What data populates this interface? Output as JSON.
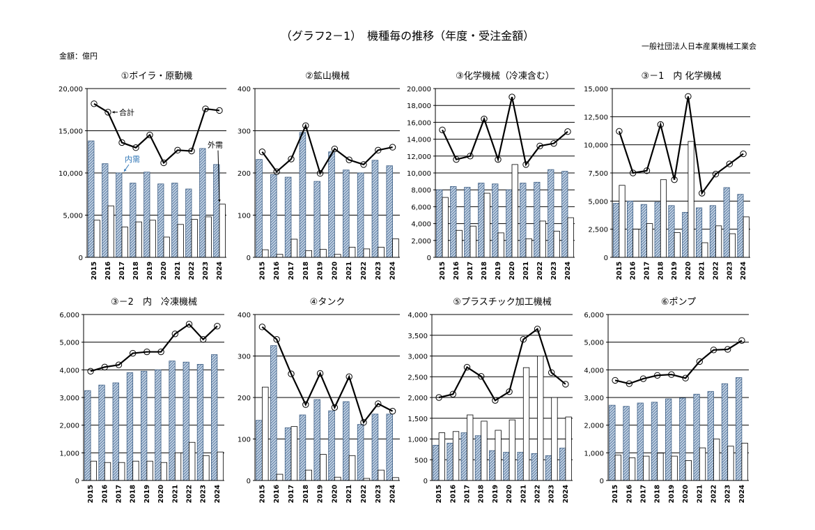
{
  "header": {
    "title": "（グラフ2－1）　機種毎の推移（年度・受注金額）",
    "organization": "一般社団法人日本産業機械工業会",
    "unit": "金額：億円"
  },
  "colors": {
    "domestic_fill": "#c5d5e6",
    "domestic_stroke": "#3f5f84",
    "hatch": "#5b7aa0",
    "overseas_fill": "#ffffff",
    "total_line": "#000000"
  },
  "chart_data": [
    {
      "type": "bar+line",
      "title": "①ボイラ・原動機",
      "categories": [
        "2015",
        "2016",
        "2017",
        "2018",
        "2019",
        "2020",
        "2021",
        "2022",
        "2023",
        "2024"
      ],
      "ylim": [
        0,
        20000
      ],
      "yticks": [
        "0",
        "5,000",
        "10,000",
        "15,000",
        "20,000"
      ],
      "series": [
        {
          "name": "内需",
          "values": [
            13800,
            11100,
            10000,
            8800,
            10100,
            8700,
            8800,
            8100,
            12900,
            11000
          ]
        },
        {
          "name": "外需",
          "values": [
            4400,
            6100,
            3600,
            4200,
            4400,
            2400,
            3900,
            4500,
            4800,
            6300
          ]
        },
        {
          "name": "合計",
          "values": [
            18200,
            17200,
            13600,
            13000,
            14500,
            11200,
            12700,
            12600,
            17600,
            17400
          ]
        }
      ],
      "annotations": [
        {
          "text": "合計",
          "series": 2,
          "index": 1
        },
        {
          "text": "内需",
          "series": 0,
          "index": 2
        },
        {
          "text": "外需",
          "series": 1,
          "index": 9
        }
      ]
    },
    {
      "type": "bar+line",
      "title": "②鉱山機械",
      "categories": [
        "2015",
        "2016",
        "2017",
        "2018",
        "2019",
        "2020",
        "2021",
        "2022",
        "2023",
        "2024"
      ],
      "ylim": [
        0,
        400
      ],
      "yticks": [
        "0",
        "100",
        "200",
        "300",
        "400"
      ],
      "series": [
        {
          "name": "内需",
          "values": [
            232,
            196,
            190,
            296,
            180,
            250,
            207,
            200,
            230,
            217
          ]
        },
        {
          "name": "外需",
          "values": [
            18,
            7,
            43,
            16,
            19,
            7,
            24,
            20,
            24,
            44
          ]
        },
        {
          "name": "合計",
          "values": [
            250,
            203,
            233,
            312,
            199,
            257,
            231,
            220,
            254,
            261
          ]
        }
      ]
    },
    {
      "type": "bar+line",
      "title": "③化学機械（冷凍含む）",
      "categories": [
        "2015",
        "2016",
        "2017",
        "2018",
        "2019",
        "2020",
        "2021",
        "2022",
        "2023",
        "2024"
      ],
      "ylim": [
        0,
        20000
      ],
      "yticks": [
        "0",
        "2,000",
        "4,000",
        "6,000",
        "8,000",
        "10,000",
        "12,000",
        "14,000",
        "16,000",
        "18,000",
        "20,000"
      ],
      "series": [
        {
          "name": "内需",
          "values": [
            8000,
            8400,
            8300,
            8800,
            8700,
            8000,
            8800,
            8900,
            10400,
            10200
          ]
        },
        {
          "name": "外需",
          "values": [
            7100,
            3200,
            3700,
            7600,
            2900,
            11000,
            2200,
            4300,
            3100,
            4700
          ]
        },
        {
          "name": "合計",
          "values": [
            15100,
            11600,
            12000,
            16400,
            11600,
            19000,
            11000,
            13200,
            13500,
            14900
          ]
        }
      ]
    },
    {
      "type": "bar+line",
      "title": "③－1　内 化学機械",
      "categories": [
        "2015",
        "2016",
        "2017",
        "2018",
        "2019",
        "2020",
        "2021",
        "2022",
        "2023",
        "2024"
      ],
      "ylim": [
        0,
        15000
      ],
      "yticks": [
        "0",
        "2,500",
        "5,000",
        "7,500",
        "10,000",
        "12,500",
        "15,000"
      ],
      "series": [
        {
          "name": "内需",
          "values": [
            4800,
            5000,
            4700,
            4900,
            4600,
            4000,
            4400,
            4600,
            6200,
            5600
          ]
        },
        {
          "name": "外需",
          "values": [
            6400,
            2500,
            3000,
            6900,
            2200,
            10300,
            1300,
            2800,
            2100,
            3600
          ]
        },
        {
          "name": "合計",
          "values": [
            11200,
            7500,
            7700,
            11800,
            6900,
            14300,
            5700,
            7400,
            8300,
            9200
          ]
        }
      ]
    },
    {
      "type": "bar+line",
      "title": "③－2　内　冷凍機械",
      "categories": [
        "2015",
        "2016",
        "2017",
        "2018",
        "2019",
        "2020",
        "2021",
        "2022",
        "2023",
        "2024"
      ],
      "ylim": [
        0,
        6000
      ],
      "yticks": [
        "0",
        "1,000",
        "2,000",
        "3,000",
        "4,000",
        "5,000",
        "6,000"
      ],
      "series": [
        {
          "name": "内需",
          "values": [
            3250,
            3450,
            3530,
            3900,
            3950,
            4000,
            4320,
            4280,
            4200,
            4550
          ]
        },
        {
          "name": "外需",
          "values": [
            700,
            650,
            650,
            700,
            700,
            650,
            1000,
            1380,
            900,
            1030
          ]
        },
        {
          "name": "合計",
          "values": [
            3950,
            4100,
            4180,
            4600,
            4650,
            4650,
            5300,
            5650,
            5100,
            5580
          ]
        }
      ]
    },
    {
      "type": "bar+line",
      "title": "④タンク",
      "categories": [
        "2015",
        "2016",
        "2017",
        "2018",
        "2019",
        "2020",
        "2021",
        "2022",
        "2023",
        "2024"
      ],
      "ylim": [
        0,
        400
      ],
      "yticks": [
        "0",
        "100",
        "200",
        "300",
        "400"
      ],
      "series": [
        {
          "name": "内需",
          "values": [
            145,
            325,
            127,
            158,
            195,
            168,
            190,
            135,
            160,
            160
          ]
        },
        {
          "name": "外需",
          "values": [
            225,
            15,
            130,
            25,
            63,
            8,
            60,
            5,
            25,
            7
          ]
        },
        {
          "name": "合計",
          "values": [
            370,
            340,
            257,
            183,
            258,
            176,
            250,
            140,
            185,
            167
          ]
        }
      ]
    },
    {
      "type": "bar+line",
      "title": "⑤プラスチック加工機械",
      "categories": [
        "2015",
        "2016",
        "2017",
        "2018",
        "2019",
        "2020",
        "2021",
        "2022",
        "2023",
        "2024"
      ],
      "ylim": [
        0,
        4000
      ],
      "yticks": [
        "0",
        "500",
        "1,000",
        "1,500",
        "2,000",
        "2,500",
        "3,000",
        "3,500",
        "4,000"
      ],
      "series": [
        {
          "name": "内需",
          "values": [
            850,
            900,
            1150,
            1080,
            720,
            680,
            680,
            650,
            600,
            780
          ]
        },
        {
          "name": "外需",
          "values": [
            1150,
            1180,
            1580,
            1430,
            1210,
            1460,
            2720,
            3000,
            2000,
            1530
          ]
        },
        {
          "name": "合計",
          "values": [
            2000,
            2080,
            2730,
            2510,
            1930,
            2140,
            3400,
            3650,
            2600,
            2320
          ]
        }
      ]
    },
    {
      "type": "bar+line",
      "title": "⑥ポンプ",
      "categories": [
        "2015",
        "2016",
        "2017",
        "2018",
        "2019",
        "2020",
        "2021",
        "2022",
        "2023",
        "2024"
      ],
      "ylim": [
        0,
        6000
      ],
      "yticks": [
        "0",
        "1,000",
        "2,000",
        "3,000",
        "4,000",
        "5,000",
        "6,000"
      ],
      "series": [
        {
          "name": "内需",
          "values": [
            2720,
            2680,
            2800,
            2830,
            2950,
            2980,
            3120,
            3220,
            3500,
            3720
          ]
        },
        {
          "name": "外需",
          "values": [
            920,
            820,
            880,
            990,
            880,
            720,
            1180,
            1500,
            1240,
            1350
          ]
        },
        {
          "name": "合計",
          "values": [
            3620,
            3500,
            3680,
            3800,
            3830,
            3700,
            4300,
            4720,
            4740,
            5060
          ]
        }
      ]
    }
  ]
}
